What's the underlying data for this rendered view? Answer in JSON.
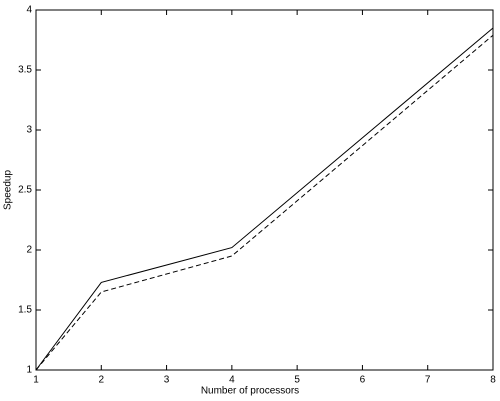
{
  "chart_data": {
    "type": "line",
    "xlabel": "Number of processors",
    "ylabel": "Speedup",
    "x": [
      1,
      2,
      4,
      8
    ],
    "series": [
      {
        "color": "#000000",
        "dash": "solid",
        "values": [
          1,
          1.73,
          2.02,
          3.85
        ]
      },
      {
        "color": "#000000",
        "dash": "dashed",
        "values": [
          1,
          1.65,
          1.95,
          3.79
        ]
      }
    ],
    "xlim": [
      1,
      8
    ],
    "xticks": [
      1,
      2,
      3,
      4,
      5,
      6,
      7,
      8
    ],
    "ylim": [
      1,
      4
    ],
    "yticks": [
      1,
      1.5,
      2,
      2.5,
      3,
      3.5,
      4
    ],
    "grid": false
  }
}
